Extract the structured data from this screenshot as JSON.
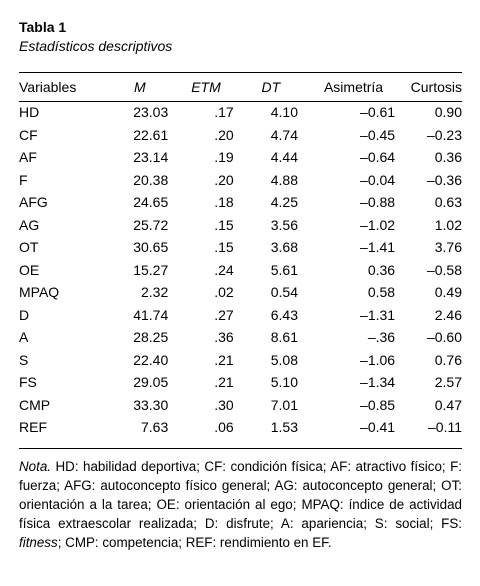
{
  "title": "Tabla 1",
  "subtitle": "Estadísticos descriptivos",
  "columns": [
    "Variables",
    "M",
    "ETM",
    "DT",
    "Asimetría",
    "Curtosis"
  ],
  "rows": [
    [
      "HD",
      "23.03",
      ".17",
      "4.10",
      "–0.61",
      "0.90"
    ],
    [
      "CF",
      "22.61",
      ".20",
      "4.74",
      "–0.45",
      "–0.23"
    ],
    [
      "AF",
      "23.14",
      ".19",
      "4.44",
      "–0.64",
      "0.36"
    ],
    [
      "F",
      "20.38",
      ".20",
      "4.88",
      "–0.04",
      "–0.36"
    ],
    [
      "AFG",
      "24.65",
      ".18",
      "4.25",
      "–0.88",
      "0.63"
    ],
    [
      "AG",
      "25.72",
      ".15",
      "3.56",
      "–1.02",
      "1.02"
    ],
    [
      "OT",
      "30.65",
      ".15",
      "3.68",
      "–1.41",
      "3.76"
    ],
    [
      "OE",
      "15.27",
      ".24",
      "5.61",
      "0.36",
      "–0.58"
    ],
    [
      "MPAQ",
      "2.32",
      ".02",
      "0.54",
      "0.58",
      "0.49"
    ],
    [
      "D",
      "41.74",
      ".27",
      "6.43",
      "–1.31",
      "2.46"
    ],
    [
      "A",
      "28.25",
      ".36",
      "8.61",
      "–.36",
      "–0.60"
    ],
    [
      "S",
      "22.40",
      ".21",
      "5.08",
      "–1.06",
      "0.76"
    ],
    [
      "FS",
      "29.05",
      ".21",
      "5.10",
      "–1.34",
      "2.57"
    ],
    [
      "CMP",
      "33.30",
      ".30",
      "7.01",
      "–0.85",
      "0.47"
    ],
    [
      "REF",
      "7.63",
      ".06",
      "1.53",
      "–0.41",
      "–0.11"
    ]
  ],
  "note": {
    "label": "Nota.",
    "text1": " HD: habilidad deportiva; CF: condición física; AF: atractivo físico; F: fuerza; AFG: autoconcepto físico general; AG: autoconcepto general; OT: orientación a la tarea; OE: orientación al ego; MPAQ: índice de actividad física extraescolar realizada; D: disfrute; A: apariencia; S: social; FS: ",
    "fitness": "fitness",
    "text2": "; CMP: competencia; REF: rendimiento en EF."
  }
}
